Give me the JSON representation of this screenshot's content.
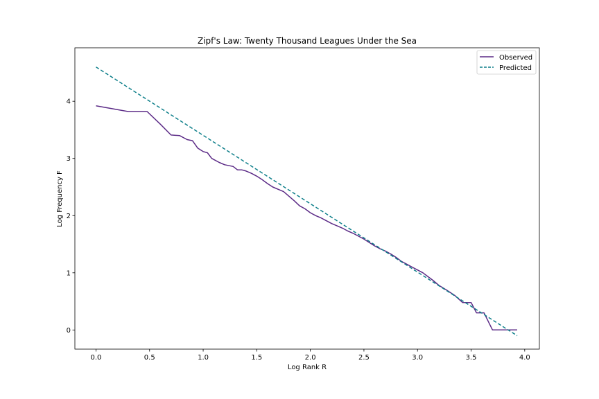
{
  "chart_data": {
    "type": "line",
    "title": "Zipf's Law: Twenty Thousand Leagues Under the Sea",
    "xlabel": "Log Rank R",
    "ylabel": "Log Frequency F",
    "xlim": [
      -0.197,
      4.137
    ],
    "ylim": [
      -0.335,
      4.935
    ],
    "xticks": [
      0.0,
      0.5,
      1.0,
      1.5,
      2.0,
      2.5,
      3.0,
      3.5,
      4.0
    ],
    "xtick_labels": [
      "0.0",
      "0.5",
      "1.0",
      "1.5",
      "2.0",
      "2.5",
      "3.0",
      "3.5",
      "4.0"
    ],
    "yticks": [
      0,
      1,
      2,
      3,
      4
    ],
    "ytick_labels": [
      "0",
      "1",
      "2",
      "3",
      "4"
    ],
    "grid": false,
    "legend_position": "top-right",
    "series": [
      {
        "name": "Observed",
        "color": "#5b2a86",
        "style": "solid",
        "x": [
          0.0,
          0.3,
          0.477,
          0.6,
          0.7,
          0.78,
          0.85,
          0.9,
          0.95,
          1.0,
          1.04,
          1.08,
          1.15,
          1.2,
          1.28,
          1.32,
          1.36,
          1.4,
          1.45,
          1.5,
          1.55,
          1.6,
          1.65,
          1.7,
          1.75,
          1.8,
          1.85,
          1.9,
          1.95,
          2.0,
          2.05,
          2.1,
          2.15,
          2.2,
          2.25,
          2.3,
          2.35,
          2.4,
          2.45,
          2.5,
          2.55,
          2.6,
          2.65,
          2.7,
          2.75,
          2.8,
          2.85,
          2.9,
          2.95,
          3.0,
          3.05,
          3.1,
          3.15,
          3.2,
          3.27,
          3.35,
          3.42,
          3.5,
          3.55,
          3.62,
          3.7,
          3.8,
          3.93
        ],
        "y": [
          3.92,
          3.82,
          3.82,
          3.6,
          3.41,
          3.4,
          3.33,
          3.31,
          3.18,
          3.12,
          3.1,
          3.0,
          2.93,
          2.89,
          2.86,
          2.8,
          2.8,
          2.78,
          2.74,
          2.69,
          2.63,
          2.56,
          2.5,
          2.46,
          2.42,
          2.34,
          2.26,
          2.17,
          2.12,
          2.05,
          2.0,
          1.96,
          1.91,
          1.86,
          1.82,
          1.78,
          1.73,
          1.69,
          1.64,
          1.59,
          1.53,
          1.47,
          1.42,
          1.38,
          1.33,
          1.27,
          1.2,
          1.15,
          1.1,
          1.05,
          1.0,
          0.93,
          0.86,
          0.78,
          0.7,
          0.6,
          0.48,
          0.48,
          0.3,
          0.3,
          0.0,
          0.0,
          0.0
        ]
      },
      {
        "name": "Predicted",
        "color": "#0e7f8a",
        "style": "dashed",
        "x": [
          0.0,
          3.93
        ],
        "y": [
          4.6,
          -0.1
        ]
      }
    ]
  }
}
